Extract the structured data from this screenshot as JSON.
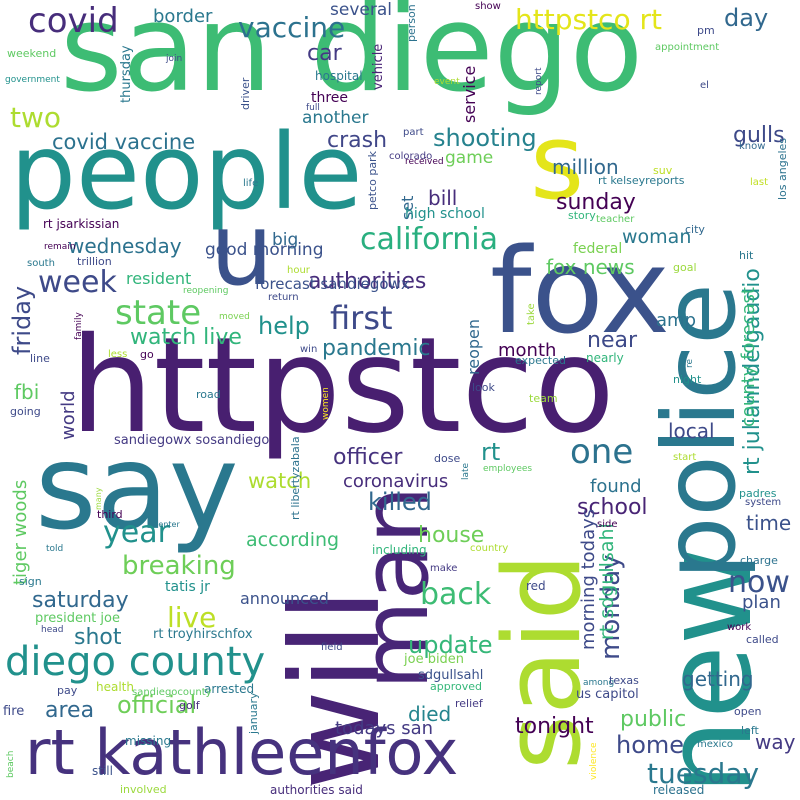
{
  "palette": {
    "dark_purple": "#440154",
    "indigo": "#472d7b",
    "blue": "#3b528b",
    "slate": "#2c728e",
    "teal": "#21918c",
    "green": "#28ae80",
    "light_green": "#5ec962",
    "lime": "#addc30",
    "yellow": "#fde725"
  },
  "words": [
    {
      "text": "san diego",
      "color": "#3dbc74"
    },
    {
      "text": "people",
      "color": "#21918c"
    },
    {
      "text": "httpstco",
      "color": "#481f70"
    },
    {
      "text": "say",
      "color": "#2a788e"
    },
    {
      "text": "fox",
      "color": "#3b528b"
    },
    {
      "text": "new",
      "color": "#21918c"
    },
    {
      "text": "police",
      "color": "#2a788e"
    },
    {
      "text": "will",
      "color": "#482475"
    },
    {
      "text": "said",
      "color": "#addc30"
    },
    {
      "text": "man",
      "color": "#482677"
    },
    {
      "text": "u",
      "color": "#3b528b"
    },
    {
      "text": "s",
      "color": "#e4e51a"
    },
    {
      "text": "rt kathleenfox",
      "color": "#46327e"
    },
    {
      "text": "diego county",
      "color": "#21918c"
    },
    {
      "text": "covid",
      "color": "#472d7b"
    },
    {
      "text": "vaccine",
      "color": "#2c728e"
    },
    {
      "text": "httpstco rt",
      "color": "#e4e51a"
    },
    {
      "text": "day",
      "color": "#31688e"
    },
    {
      "text": "border",
      "color": "#2a788e"
    },
    {
      "text": "several",
      "color": "#3b528b"
    },
    {
      "text": "car",
      "color": "#443a83"
    },
    {
      "text": "two",
      "color": "#addc30"
    },
    {
      "text": "covid vaccine",
      "color": "#2c728e"
    },
    {
      "text": "crash",
      "color": "#404688"
    },
    {
      "text": "shooting",
      "color": "#26828e"
    },
    {
      "text": "california",
      "color": "#29af7f"
    },
    {
      "text": "bill",
      "color": "#472d7b"
    },
    {
      "text": "sunday",
      "color": "#440154"
    },
    {
      "text": "million",
      "color": "#31688e"
    },
    {
      "text": "week",
      "color": "#3e4a89"
    },
    {
      "text": "state",
      "color": "#5ec962"
    },
    {
      "text": "first",
      "color": "#3e4a89"
    },
    {
      "text": "friday",
      "color": "#3e4a89"
    },
    {
      "text": "help",
      "color": "#21918c"
    },
    {
      "text": "watch live",
      "color": "#31b57b"
    },
    {
      "text": "pandemic",
      "color": "#2a788e"
    },
    {
      "text": "fox news",
      "color": "#5ec962"
    },
    {
      "text": "authorities",
      "color": "#472d7b"
    },
    {
      "text": "good morning",
      "color": "#3b528b"
    },
    {
      "text": "wednesday",
      "color": "#2c728e"
    },
    {
      "text": "big",
      "color": "#31688e"
    },
    {
      "text": "forecast sandiegowx",
      "color": "#3b528b"
    },
    {
      "text": "one",
      "color": "#2c728e"
    },
    {
      "text": "officer",
      "color": "#46327e"
    },
    {
      "text": "coronavirus",
      "color": "#472d7b"
    },
    {
      "text": "killed",
      "color": "#31688e"
    },
    {
      "text": "watch",
      "color": "#addc30"
    },
    {
      "text": "year",
      "color": "#21918c"
    },
    {
      "text": "according",
      "color": "#3dbc74"
    },
    {
      "text": "breaking",
      "color": "#6ece58"
    },
    {
      "text": "saturday",
      "color": "#31688e"
    },
    {
      "text": "live",
      "color": "#bddf26"
    },
    {
      "text": "back",
      "color": "#3dbc74"
    },
    {
      "text": "update",
      "color": "#35b779"
    },
    {
      "text": "announced",
      "color": "#3b528b"
    },
    {
      "text": "shot",
      "color": "#2a788e"
    },
    {
      "text": "official",
      "color": "#6ece58"
    },
    {
      "text": "area",
      "color": "#31688e"
    },
    {
      "text": "died",
      "color": "#25858e"
    },
    {
      "text": "todays san",
      "color": "#443a83"
    },
    {
      "text": "tonight",
      "color": "#440154"
    },
    {
      "text": "public",
      "color": "#5ec962"
    },
    {
      "text": "home",
      "color": "#3e4a89"
    },
    {
      "text": "tuesday",
      "color": "#2a788e"
    },
    {
      "text": "now",
      "color": "#3b528b"
    },
    {
      "text": "plan",
      "color": "#3b528b"
    },
    {
      "text": "way",
      "color": "#443a83"
    },
    {
      "text": "time",
      "color": "#3b528b"
    },
    {
      "text": "getting",
      "color": "#31688e"
    },
    {
      "text": "school",
      "color": "#482475"
    },
    {
      "text": "found",
      "color": "#2c728e"
    },
    {
      "text": "house",
      "color": "#6ece58"
    },
    {
      "text": "monday",
      "color": "#3e4a89"
    },
    {
      "text": "local",
      "color": "#3e4a89"
    },
    {
      "text": "month",
      "color": "#440154"
    },
    {
      "text": "amp",
      "color": "#2c728e"
    },
    {
      "text": "near",
      "color": "#3e4a89"
    },
    {
      "text": "woman",
      "color": "#2a788e"
    },
    {
      "text": "game",
      "color": "#6ece58"
    },
    {
      "text": "gulls",
      "color": "#3e4a89"
    },
    {
      "text": "rt julianndelgaudio",
      "color": "#21918c"
    },
    {
      "text": "county forecast",
      "color": "#35b779"
    },
    {
      "text": "morning todays",
      "color": "#3e4a89"
    },
    {
      "text": "rt sdgullsahl",
      "color": "#31b57b"
    },
    {
      "text": "tiger woods",
      "color": "#5ec962"
    },
    {
      "text": "world",
      "color": "#443a83"
    },
    {
      "text": "fbi",
      "color": "#5ec962"
    },
    {
      "text": "resident",
      "color": "#31b57b"
    },
    {
      "text": "reopen",
      "color": "#31688e"
    },
    {
      "text": "rt",
      "color": "#21918c"
    },
    {
      "text": "set",
      "color": "#31688e"
    },
    {
      "text": "high school",
      "color": "#21918c"
    },
    {
      "text": "three",
      "color": "#440154"
    },
    {
      "text": "another",
      "color": "#2a788e"
    },
    {
      "text": "service",
      "color": "#440154"
    },
    {
      "text": "thursday",
      "color": "#2a788e"
    },
    {
      "text": "hospital",
      "color": "#2a788e"
    },
    {
      "text": "vehicle",
      "color": "#482475"
    },
    {
      "text": "person",
      "color": "#2c728e"
    },
    {
      "text": "driver",
      "color": "#3b528b"
    },
    {
      "text": "sandiegowx sosandiego",
      "color": "#443a83"
    },
    {
      "text": "rt jsarkissian",
      "color": "#440154"
    },
    {
      "text": "rt kelseyreports",
      "color": "#2a788e"
    },
    {
      "text": "los angeles",
      "color": "#2c728e"
    },
    {
      "text": "colorado",
      "color": "#443a83"
    },
    {
      "text": "petco park",
      "color": "#3b528b"
    },
    {
      "text": "received",
      "color": "#440154"
    },
    {
      "text": "part",
      "color": "#3e4a89"
    },
    {
      "text": "city",
      "color": "#31688e"
    },
    {
      "text": "story",
      "color": "#31b57b"
    },
    {
      "text": "teacher",
      "color": "#5ec962"
    },
    {
      "text": "federal",
      "color": "#7ad151"
    },
    {
      "text": "suv",
      "color": "#bddf26"
    },
    {
      "text": "know",
      "color": "#31688e"
    },
    {
      "text": "last",
      "color": "#c2df23"
    },
    {
      "text": "hit",
      "color": "#2a788e"
    },
    {
      "text": "goal",
      "color": "#9bd93c"
    },
    {
      "text": "rt libertyzabala",
      "color": "#2c728e"
    },
    {
      "text": "tatis jr",
      "color": "#21918c"
    },
    {
      "text": "president joe",
      "color": "#5ec962"
    },
    {
      "text": "joe biden",
      "color": "#7ad151"
    },
    {
      "text": "sdgullsahl",
      "color": "#3b528b"
    },
    {
      "text": "rt troyhirschfox",
      "color": "#2a788e"
    },
    {
      "text": "us capitol",
      "color": "#3e4a89"
    },
    {
      "text": "approved",
      "color": "#35b779"
    },
    {
      "text": "relief",
      "color": "#443a83"
    },
    {
      "text": "including",
      "color": "#31b57b"
    },
    {
      "text": "country",
      "color": "#addc30"
    },
    {
      "text": "make",
      "color": "#443a83"
    },
    {
      "text": "red",
      "color": "#3e4a89"
    },
    {
      "text": "among",
      "color": "#2a788e"
    },
    {
      "text": "texas",
      "color": "#3e4a89"
    },
    {
      "text": "health",
      "color": "#addc30"
    },
    {
      "text": "arrested",
      "color": "#2a788e"
    },
    {
      "text": "pay",
      "color": "#3e4a89"
    },
    {
      "text": "fire",
      "color": "#3e4a89"
    },
    {
      "text": "sandiegocounty",
      "color": "#5ec962"
    },
    {
      "text": "golf",
      "color": "#472d7b"
    },
    {
      "text": "missing",
      "color": "#2a788e"
    },
    {
      "text": "still",
      "color": "#3b528b"
    },
    {
      "text": "involved",
      "color": "#9bd93c"
    },
    {
      "text": "authorities said",
      "color": "#472d7b"
    },
    {
      "text": "released",
      "color": "#2c728e"
    },
    {
      "text": "beach",
      "color": "#5ec962"
    },
    {
      "text": "january",
      "color": "#2a788e"
    },
    {
      "text": "open",
      "color": "#3e4a89"
    },
    {
      "text": "left",
      "color": "#2a788e"
    },
    {
      "text": "mexico",
      "color": "#2a788e"
    },
    {
      "text": "violence",
      "color": "#fde725"
    },
    {
      "text": "work",
      "color": "#440154"
    },
    {
      "text": "called",
      "color": "#3e4a89"
    },
    {
      "text": "charge",
      "color": "#2c728e"
    },
    {
      "text": "system",
      "color": "#3e4a89"
    },
    {
      "text": "side",
      "color": "#440154"
    },
    {
      "text": "padres",
      "color": "#21918c"
    },
    {
      "text": "start",
      "color": "#addc30"
    },
    {
      "text": "night",
      "color": "#21918c"
    },
    {
      "text": "look",
      "color": "#3e4a89"
    },
    {
      "text": "team",
      "color": "#9bd93c"
    },
    {
      "text": "expected",
      "color": "#2a788e"
    },
    {
      "text": "nearly",
      "color": "#31b57b"
    },
    {
      "text": "employees",
      "color": "#5ec962"
    },
    {
      "text": "dose",
      "color": "#3e4a89"
    },
    {
      "text": "late",
      "color": "#2a788e"
    },
    {
      "text": "women",
      "color": "#fde725"
    },
    {
      "text": "road",
      "color": "#2a788e"
    },
    {
      "text": "win",
      "color": "#3e4a89"
    },
    {
      "text": "less",
      "color": "#addc30"
    },
    {
      "text": "go",
      "color": "#440154"
    },
    {
      "text": "line",
      "color": "#3e4a89"
    },
    {
      "text": "family",
      "color": "#440154"
    },
    {
      "text": "reopening",
      "color": "#5ec962"
    },
    {
      "text": "remain",
      "color": "#440154"
    },
    {
      "text": "south",
      "color": "#2a788e"
    },
    {
      "text": "trillion",
      "color": "#3e4a89"
    },
    {
      "text": "moved",
      "color": "#7ad151"
    },
    {
      "text": "return",
      "color": "#3e4a89"
    },
    {
      "text": "hour",
      "color": "#addc30"
    },
    {
      "text": "take",
      "color": "#9bd93c"
    },
    {
      "text": "re",
      "color": "#2a788e"
    },
    {
      "text": "life",
      "color": "#2a788e"
    },
    {
      "text": "weekend",
      "color": "#5ec962"
    },
    {
      "text": "government",
      "color": "#21918c"
    },
    {
      "text": "join",
      "color": "#3e4a89"
    },
    {
      "text": "full",
      "color": "#3e4a89"
    },
    {
      "text": "event",
      "color": "#addc30"
    },
    {
      "text": "report",
      "color": "#3e4a89"
    },
    {
      "text": "show",
      "color": "#440154"
    },
    {
      "text": "appointment",
      "color": "#5ec962"
    },
    {
      "text": "pm",
      "color": "#3e4a89"
    },
    {
      "text": "el",
      "color": "#3e4a89"
    },
    {
      "text": "third",
      "color": "#440154"
    },
    {
      "text": "many",
      "color": "#9bd93c"
    },
    {
      "text": "center",
      "color": "#2a788e"
    },
    {
      "text": "told",
      "color": "#2a788e"
    },
    {
      "text": "sign",
      "color": "#2a788e"
    },
    {
      "text": "head",
      "color": "#3e4a89"
    },
    {
      "text": "field",
      "color": "#3e4a89"
    },
    {
      "text": "going",
      "color": "#3e4a89"
    }
  ]
}
